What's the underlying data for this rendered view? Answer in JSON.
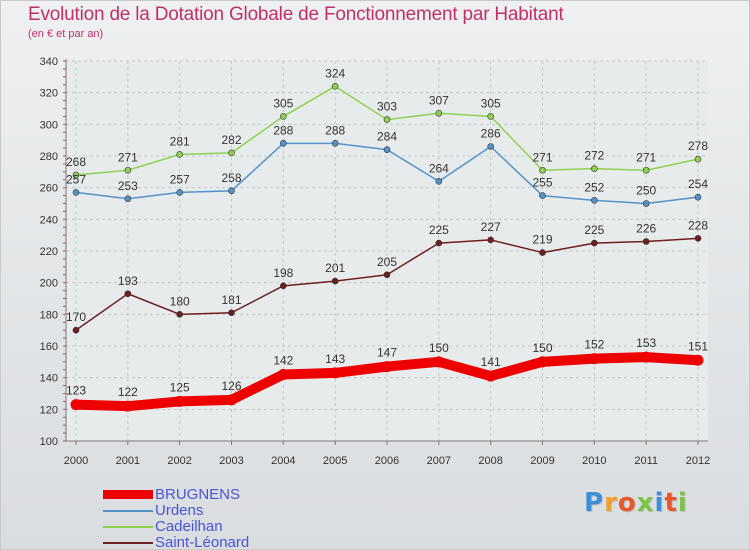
{
  "header": {
    "title": "Evolution de la Dotation Globale de Fonctionnement par Habitant",
    "subtitle": "(en € et par an)"
  },
  "brand": {
    "letters": [
      "P",
      "r",
      "o",
      "x",
      "i",
      "t",
      "i"
    ],
    "colors": [
      "#3c8fd6",
      "#f0a02a",
      "#e8562a",
      "#7cc243",
      "#3c8fd6",
      "#e8562a",
      "#7cc243"
    ]
  },
  "chart_data": {
    "type": "line",
    "title": "Evolution de la Dotation Globale de Fonctionnement par Habitant",
    "subtitle": "(en € et par an)",
    "x": [
      "2000",
      "2001",
      "2002",
      "2003",
      "2004",
      "2005",
      "2006",
      "2007",
      "2008",
      "2009",
      "2010",
      "2011",
      "2012"
    ],
    "ylim": [
      100,
      340
    ],
    "yticks": [
      100,
      120,
      140,
      160,
      180,
      200,
      220,
      240,
      260,
      280,
      300,
      320,
      340
    ],
    "grid": true,
    "legend_position": "bottom-left",
    "series": [
      {
        "name": "BRUGNENS",
        "color": "#ee0000",
        "values": [
          123,
          122,
          125,
          126,
          142,
          143,
          147,
          150,
          141,
          150,
          152,
          153,
          151
        ]
      },
      {
        "name": "Urdens",
        "color": "#5592c8",
        "values": [
          257,
          253,
          257,
          258,
          288,
          288,
          284,
          264,
          286,
          255,
          252,
          250,
          254
        ]
      },
      {
        "name": "Cadeilhan",
        "color": "#8fd14f",
        "values": [
          268,
          271,
          281,
          282,
          305,
          324,
          303,
          307,
          305,
          271,
          272,
          271,
          278
        ]
      },
      {
        "name": "Saint-Léonard",
        "color": "#6e1f1f",
        "values": [
          170,
          193,
          180,
          181,
          198,
          201,
          205,
          225,
          227,
          219,
          225,
          226,
          228
        ]
      }
    ]
  }
}
